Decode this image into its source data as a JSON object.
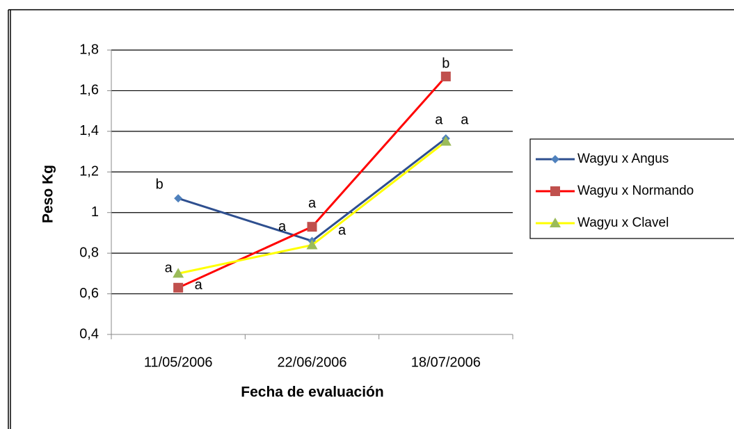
{
  "chart_data": {
    "type": "line",
    "x_label": "Fecha de evaluación",
    "y_label": "Peso Kg",
    "categories": [
      "11/05/2006",
      "22/06/2006",
      "18/07/2006"
    ],
    "series": [
      {
        "name": "Wagyu x Angus",
        "color": "#2e4f8f",
        "marker_color": "#4f81bd",
        "marker": "diamond",
        "values": [
          1.07,
          0.86,
          1.365
        ],
        "annotations": [
          "b",
          "a",
          "a"
        ]
      },
      {
        "name": "Wagyu x Normando",
        "color": "#ff0000",
        "marker_color": "#c0504d",
        "marker": "square",
        "values": [
          0.63,
          0.93,
          1.67
        ],
        "annotations": [
          "a",
          "a",
          "b"
        ]
      },
      {
        "name": "Wagyu x Clavel",
        "color": "#ffff00",
        "marker_color": "#9bbb59",
        "marker": "triangle",
        "values": [
          0.7,
          0.84,
          1.35
        ],
        "annotations": [
          "a",
          "a",
          "a"
        ]
      }
    ],
    "ylim": [
      0.4,
      1.8
    ],
    "yticks": [
      {
        "value": 0.4,
        "label": "0,4"
      },
      {
        "value": 0.6,
        "label": "0,6"
      },
      {
        "value": 0.8,
        "label": "0,8"
      },
      1,
      {
        "value": 1.2,
        "label": "1,2"
      },
      {
        "value": 1.4,
        "label": "1,4"
      },
      {
        "value": 1.6,
        "label": "1,6"
      },
      {
        "value": 1.8,
        "label": "1,8"
      }
    ],
    "grid": true,
    "legend": "right"
  }
}
